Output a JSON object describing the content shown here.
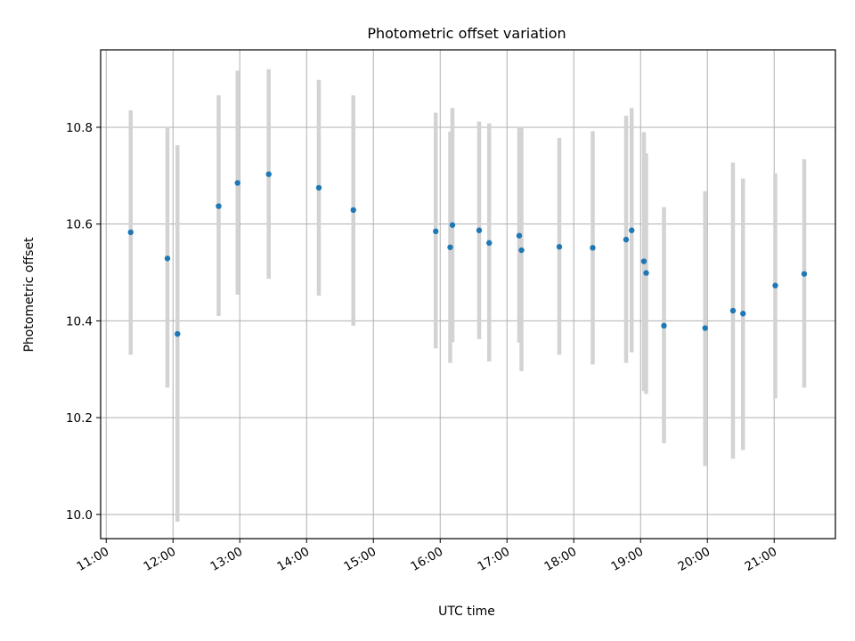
{
  "chart_data": {
    "type": "scatter",
    "title": "Photometric offset variation",
    "xlabel": "UTC time",
    "ylabel": "Photometric offset",
    "xlim": [
      "10:55",
      "21:55"
    ],
    "ylim": [
      9.95,
      10.96
    ],
    "x_ticks": [
      "11:00",
      "12:00",
      "13:00",
      "14:00",
      "15:00",
      "16:00",
      "17:00",
      "18:00",
      "19:00",
      "20:00",
      "21:00"
    ],
    "y_ticks": [
      "10.0",
      "10.2",
      "10.4",
      "10.6",
      "10.8"
    ],
    "grid": true,
    "legend": "none",
    "colors": {
      "points": "#1f77b4",
      "error_bars": "#d3d3d3",
      "grid": "#b0b0b0"
    },
    "points": [
      {
        "time": "11:22",
        "y": 10.583,
        "yerr_low": 10.33,
        "yerr_high": 10.835
      },
      {
        "time": "11:55",
        "y": 10.529,
        "yerr_low": 10.262,
        "yerr_high": 10.798
      },
      {
        "time": "12:04",
        "y": 10.373,
        "yerr_low": 9.985,
        "yerr_high": 10.763
      },
      {
        "time": "12:41",
        "y": 10.637,
        "yerr_low": 10.41,
        "yerr_high": 10.866
      },
      {
        "time": "12:58",
        "y": 10.685,
        "yerr_low": 10.454,
        "yerr_high": 10.917
      },
      {
        "time": "13:26",
        "y": 10.703,
        "yerr_low": 10.487,
        "yerr_high": 10.92
      },
      {
        "time": "14:11",
        "y": 10.675,
        "yerr_low": 10.452,
        "yerr_high": 10.898
      },
      {
        "time": "14:42",
        "y": 10.629,
        "yerr_low": 10.39,
        "yerr_high": 10.866
      },
      {
        "time": "15:56",
        "y": 10.585,
        "yerr_low": 10.343,
        "yerr_high": 10.83
      },
      {
        "time": "16:09",
        "y": 10.552,
        "yerr_low": 10.313,
        "yerr_high": 10.791
      },
      {
        "time": "16:11",
        "y": 10.598,
        "yerr_low": 10.356,
        "yerr_high": 10.84
      },
      {
        "time": "16:35",
        "y": 10.587,
        "yerr_low": 10.362,
        "yerr_high": 10.812
      },
      {
        "time": "16:44",
        "y": 10.561,
        "yerr_low": 10.316,
        "yerr_high": 10.808
      },
      {
        "time": "17:11",
        "y": 10.576,
        "yerr_low": 10.355,
        "yerr_high": 10.8
      },
      {
        "time": "17:13",
        "y": 10.546,
        "yerr_low": 10.296,
        "yerr_high": 10.8
      },
      {
        "time": "17:47",
        "y": 10.553,
        "yerr_low": 10.33,
        "yerr_high": 10.778
      },
      {
        "time": "18:17",
        "y": 10.551,
        "yerr_low": 10.31,
        "yerr_high": 10.792
      },
      {
        "time": "18:47",
        "y": 10.568,
        "yerr_low": 10.313,
        "yerr_high": 10.824
      },
      {
        "time": "18:52",
        "y": 10.587,
        "yerr_low": 10.335,
        "yerr_high": 10.84
      },
      {
        "time": "19:03",
        "y": 10.523,
        "yerr_low": 10.255,
        "yerr_high": 10.79
      },
      {
        "time": "19:05",
        "y": 10.499,
        "yerr_low": 10.249,
        "yerr_high": 10.746
      },
      {
        "time": "19:21",
        "y": 10.39,
        "yerr_low": 10.147,
        "yerr_high": 10.635
      },
      {
        "time": "19:58",
        "y": 10.385,
        "yerr_low": 10.1,
        "yerr_high": 10.668
      },
      {
        "time": "20:23",
        "y": 10.421,
        "yerr_low": 10.115,
        "yerr_high": 10.727
      },
      {
        "time": "20:32",
        "y": 10.415,
        "yerr_low": 10.133,
        "yerr_high": 10.694
      },
      {
        "time": "21:01",
        "y": 10.473,
        "yerr_low": 10.24,
        "yerr_high": 10.705
      },
      {
        "time": "21:27",
        "y": 10.497,
        "yerr_low": 10.262,
        "yerr_high": 10.734
      }
    ]
  }
}
